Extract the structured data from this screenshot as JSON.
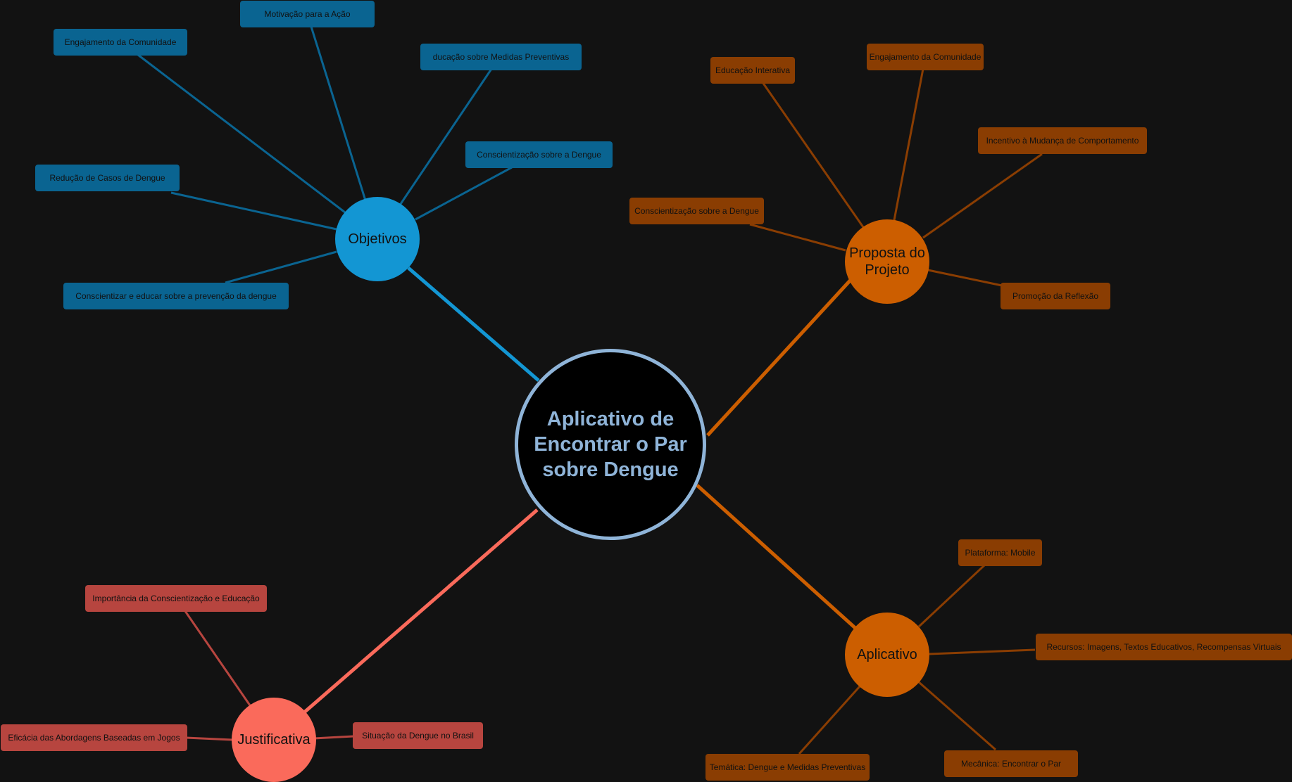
{
  "root": {
    "label": "Aplicativo de Encontrar o Par sobre Dengue"
  },
  "branches": {
    "objetivos": {
      "label": "Objetivos",
      "color": "#1396d3",
      "leaf_color": "#0a6491",
      "items": [
        "Motivação para a Ação",
        "Engajamento da Comunidade",
        "ducação sobre Medidas Preventivas",
        "Conscientização sobre a Dengue",
        "Redução de Casos de Dengue",
        "Conscientizar e educar sobre a prevenção da dengue"
      ]
    },
    "proposta": {
      "label": "Proposta do Projeto",
      "color": "#cc5e00",
      "leaf_color": "#8a3d02",
      "items": [
        "Educação Interativa",
        "Engajamento da Comunidade",
        "Incentivo à Mudança de Comportamento",
        "Conscientização sobre a Dengue",
        "Promoção da Reflexão"
      ]
    },
    "aplicativo": {
      "label": "Aplicativo",
      "color": "#cc5e00",
      "leaf_color": "#8a3d02",
      "items": [
        "Plataforma: Mobile",
        "Recursos: Imagens, Textos Educativos, Recompensas Virtuais",
        "Temática: Dengue e Medidas Preventivas",
        "Mecânica: Encontrar o Par"
      ]
    },
    "justificativa": {
      "label": "Justificativa",
      "color": "#fa6a5b",
      "leaf_color": "#b7453f",
      "items": [
        "Importância da Conscientização e Educação",
        "Eficácia das Abordagens Baseadas em Jogos",
        "Situação da Dengue no Brasil"
      ]
    }
  },
  "colors": {
    "background": "#121212",
    "root_border": "#8fb4d8",
    "root_fill": "#000000"
  }
}
